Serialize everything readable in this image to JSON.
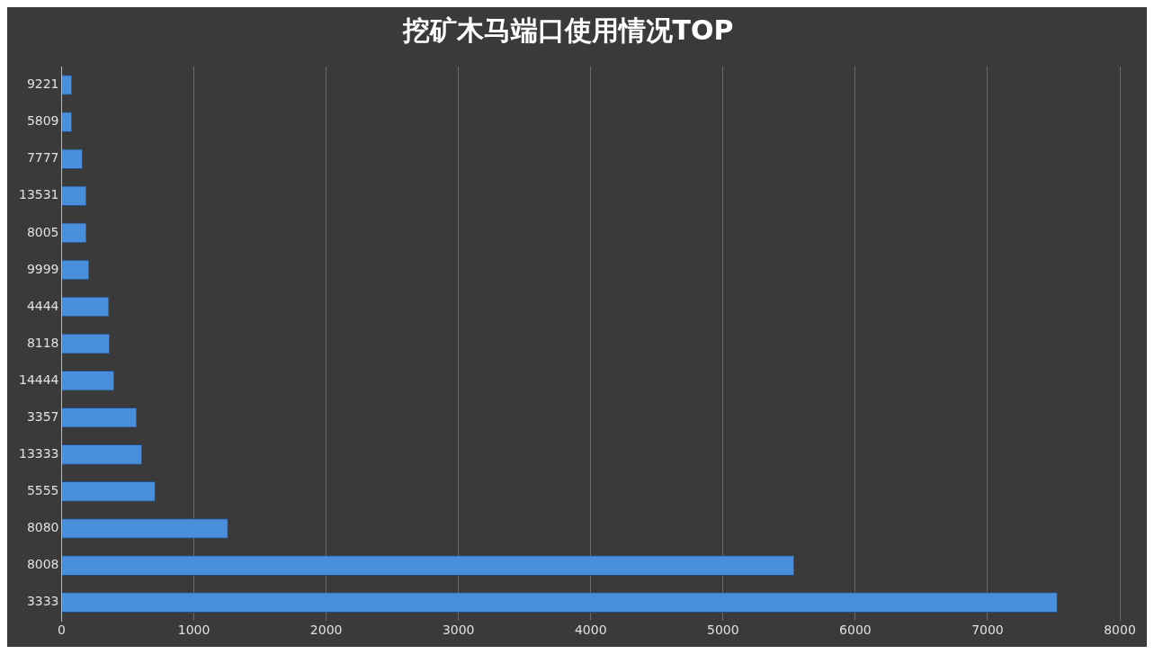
{
  "chart_data": {
    "type": "bar",
    "orientation": "horizontal",
    "title": "挖矿木马端口使用情况TOP",
    "categories": [
      "9221",
      "5809",
      "7777",
      "13531",
      "8005",
      "9999",
      "4444",
      "8118",
      "14444",
      "3357",
      "13333",
      "5555",
      "8080",
      "8008",
      "3333"
    ],
    "values": [
      80,
      80,
      160,
      190,
      190,
      210,
      360,
      365,
      400,
      570,
      610,
      710,
      1260,
      5540,
      7530
    ],
    "color": "#4a8fdc",
    "xlim": [
      0,
      8000
    ],
    "xticks": [
      0,
      1000,
      2000,
      3000,
      4000,
      5000,
      6000,
      7000,
      8000
    ],
    "grid": "x",
    "legend": false
  }
}
